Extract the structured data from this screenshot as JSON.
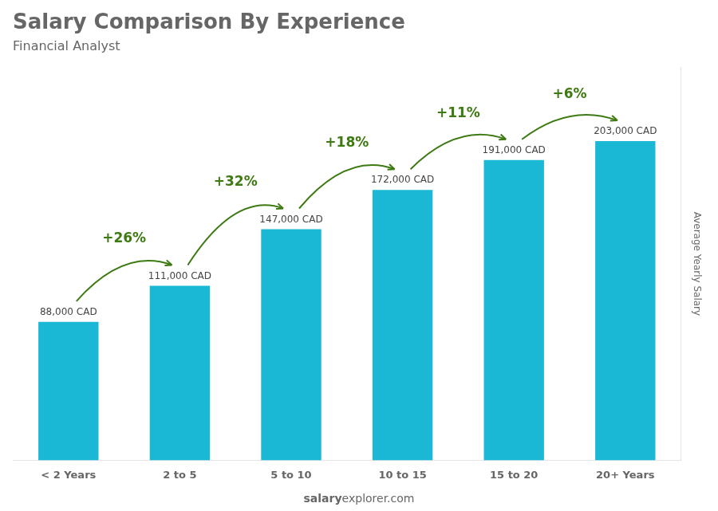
{
  "chart_data": {
    "type": "bar",
    "title": "Salary Comparison By Experience",
    "subtitle": "Financial Analyst",
    "categories": [
      "< 2 Years",
      "2 to 5",
      "5 to 10",
      "10 to 15",
      "15 to 20",
      "20+ Years"
    ],
    "values": [
      88000,
      111000,
      147000,
      172000,
      191000,
      203000
    ],
    "value_labels": [
      "88,000 CAD",
      "111,000 CAD",
      "147,000 CAD",
      "172,000 CAD",
      "191,000 CAD",
      "203,000 CAD"
    ],
    "data_labels": true,
    "annotations": [
      "+26%",
      "+32%",
      "+18%",
      "+11%",
      "+6%"
    ],
    "ylabel": "Average Yearly Salary",
    "footer": [
      "salary",
      "explorer.com"
    ],
    "color": "#1ab8d4",
    "ylim": [
      0,
      250000
    ],
    "grid": false,
    "tick_labels": "x"
  }
}
